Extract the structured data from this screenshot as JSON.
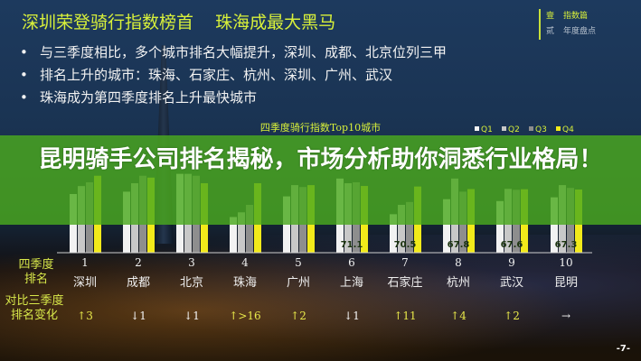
{
  "slide": {
    "headline": "深圳荣登骑行指数榜首    珠海成最大黑马",
    "bullets": [
      "与三季度相比，多个城市排名大幅提升，深圳、成都、北京位列三甲",
      "排名上升的城市：珠海、石家庄、杭州、深圳、广州、武汉",
      "珠海成为第四季度排名上升最快城市"
    ],
    "side_nav": [
      {
        "num": "壹",
        "label": "指数篇"
      },
      {
        "num": "贰",
        "label": "年度盘点"
      }
    ],
    "page_number": "-7-",
    "rank_label": [
      "四季度",
      "排名"
    ],
    "change_label": [
      "对比三季度",
      "排名变化"
    ],
    "ranks": [
      "1",
      "2",
      "3",
      "4",
      "5",
      "6",
      "7",
      "8",
      "9",
      "10"
    ],
    "changes": [
      {
        "text": "↑3",
        "dir": "up"
      },
      {
        "text": "↓1",
        "dir": "down"
      },
      {
        "text": "↓1",
        "dir": "down"
      },
      {
        "text": "↑>16",
        "dir": "up"
      },
      {
        "text": "↑2",
        "dir": "up"
      },
      {
        "text": "↓1",
        "dir": "down"
      },
      {
        "text": "↑11",
        "dir": "up"
      },
      {
        "text": "↑4",
        "dir": "up"
      },
      {
        "text": "↑2",
        "dir": "up"
      },
      {
        "text": "→",
        "dir": "flat"
      }
    ]
  },
  "banner": {
    "title": "昆明骑手公司排名揭秘，市场分析助你洞悉行业格局！"
  },
  "chart_data": {
    "type": "bar",
    "title": "四季度骑行指数Top10城市",
    "categories": [
      "深圳",
      "成都",
      "北京",
      "珠海",
      "广州",
      "上海",
      "石家庄",
      "杭州",
      "武汉",
      "昆明"
    ],
    "series": [
      {
        "name": "Q1",
        "color": "#f2f2f2",
        "values": [
          62.5,
          65,
          84,
          38,
          60,
          79,
          41,
          57,
          55,
          59
        ]
      },
      {
        "name": "Q2",
        "color": "#c8c8c8",
        "values": [
          71,
          74,
          84,
          43,
          72,
          74,
          51,
          79,
          68,
          72
        ]
      },
      {
        "name": "Q3",
        "color": "#8e8e8e",
        "values": [
          75,
          82,
          82,
          51,
          70,
          75,
          54,
          65,
          67,
          69
        ]
      },
      {
        "name": "Q4",
        "color": "#f2ea1a",
        "values": [
          82,
          80,
          74,
          74,
          72,
          71.1,
          70.5,
          67.8,
          67.6,
          67.3
        ]
      }
    ],
    "data_labels_visible": [
      "71.1",
      "70.5",
      "67.8",
      "67.6",
      "67.3"
    ],
    "legend": "top-right",
    "ylim": [
      0,
      100
    ],
    "grid": false
  }
}
